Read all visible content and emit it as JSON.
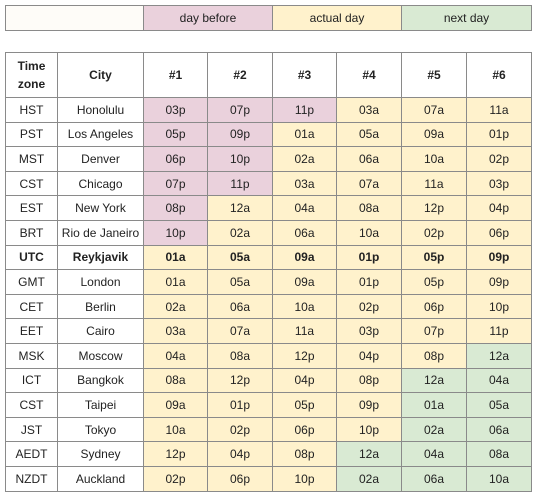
{
  "colors": {
    "day_before": "#ead1dc",
    "actual_day": "#fff2cc",
    "next_day": "#d9ead3"
  },
  "legend": {
    "day_before": "day before",
    "actual_day": "actual day",
    "next_day": "next day"
  },
  "headers": {
    "zone": "Time zone",
    "city": "City",
    "slots": [
      "#1",
      "#2",
      "#3",
      "#4",
      "#5",
      "#6"
    ]
  },
  "rows": [
    {
      "zone": "HST",
      "city": "Honolulu",
      "times": [
        "03p",
        "07p",
        "11p",
        "03a",
        "07a",
        "11a"
      ],
      "days": [
        "before",
        "before",
        "before",
        "actual",
        "actual",
        "actual"
      ]
    },
    {
      "zone": "PST",
      "city": "Los Angeles",
      "times": [
        "05p",
        "09p",
        "01a",
        "05a",
        "09a",
        "01p"
      ],
      "days": [
        "before",
        "before",
        "actual",
        "actual",
        "actual",
        "actual"
      ]
    },
    {
      "zone": "MST",
      "city": "Denver",
      "times": [
        "06p",
        "10p",
        "02a",
        "06a",
        "10a",
        "02p"
      ],
      "days": [
        "before",
        "before",
        "actual",
        "actual",
        "actual",
        "actual"
      ]
    },
    {
      "zone": "CST",
      "city": "Chicago",
      "times": [
        "07p",
        "11p",
        "03a",
        "07a",
        "11a",
        "03p"
      ],
      "days": [
        "before",
        "before",
        "actual",
        "actual",
        "actual",
        "actual"
      ]
    },
    {
      "zone": "EST",
      "city": "New York",
      "times": [
        "08p",
        "12a",
        "04a",
        "08a",
        "12p",
        "04p"
      ],
      "days": [
        "before",
        "actual",
        "actual",
        "actual",
        "actual",
        "actual"
      ]
    },
    {
      "zone": "BRT",
      "city": "Rio de Janeiro",
      "times": [
        "10p",
        "02a",
        "06a",
        "10a",
        "02p",
        "06p"
      ],
      "days": [
        "before",
        "actual",
        "actual",
        "actual",
        "actual",
        "actual"
      ]
    },
    {
      "zone": "UTC",
      "city": "Reykjavik",
      "bold": true,
      "times": [
        "01a",
        "05a",
        "09a",
        "01p",
        "05p",
        "09p"
      ],
      "days": [
        "actual",
        "actual",
        "actual",
        "actual",
        "actual",
        "actual"
      ]
    },
    {
      "zone": "GMT",
      "city": "London",
      "times": [
        "01a",
        "05a",
        "09a",
        "01p",
        "05p",
        "09p"
      ],
      "days": [
        "actual",
        "actual",
        "actual",
        "actual",
        "actual",
        "actual"
      ]
    },
    {
      "zone": "CET",
      "city": "Berlin",
      "times": [
        "02a",
        "06a",
        "10a",
        "02p",
        "06p",
        "10p"
      ],
      "days": [
        "actual",
        "actual",
        "actual",
        "actual",
        "actual",
        "actual"
      ]
    },
    {
      "zone": "EET",
      "city": "Cairo",
      "times": [
        "03a",
        "07a",
        "11a",
        "03p",
        "07p",
        "11p"
      ],
      "days": [
        "actual",
        "actual",
        "actual",
        "actual",
        "actual",
        "actual"
      ]
    },
    {
      "zone": "MSK",
      "city": "Moscow",
      "times": [
        "04a",
        "08a",
        "12p",
        "04p",
        "08p",
        "12a"
      ],
      "days": [
        "actual",
        "actual",
        "actual",
        "actual",
        "actual",
        "next"
      ]
    },
    {
      "zone": "ICT",
      "city": "Bangkok",
      "times": [
        "08a",
        "12p",
        "04p",
        "08p",
        "12a",
        "04a"
      ],
      "days": [
        "actual",
        "actual",
        "actual",
        "actual",
        "next",
        "next"
      ]
    },
    {
      "zone": "CST",
      "city": "Taipei",
      "times": [
        "09a",
        "01p",
        "05p",
        "09p",
        "01a",
        "05a"
      ],
      "days": [
        "actual",
        "actual",
        "actual",
        "actual",
        "next",
        "next"
      ]
    },
    {
      "zone": "JST",
      "city": "Tokyo",
      "times": [
        "10a",
        "02p",
        "06p",
        "10p",
        "02a",
        "06a"
      ],
      "days": [
        "actual",
        "actual",
        "actual",
        "actual",
        "next",
        "next"
      ]
    },
    {
      "zone": "AEDT",
      "city": "Sydney",
      "times": [
        "12p",
        "04p",
        "08p",
        "12a",
        "04a",
        "08a"
      ],
      "days": [
        "actual",
        "actual",
        "actual",
        "next",
        "next",
        "next"
      ]
    },
    {
      "zone": "NZDT",
      "city": "Auckland",
      "times": [
        "02p",
        "06p",
        "10p",
        "02a",
        "06a",
        "10a"
      ],
      "days": [
        "actual",
        "actual",
        "actual",
        "next",
        "next",
        "next"
      ]
    }
  ]
}
